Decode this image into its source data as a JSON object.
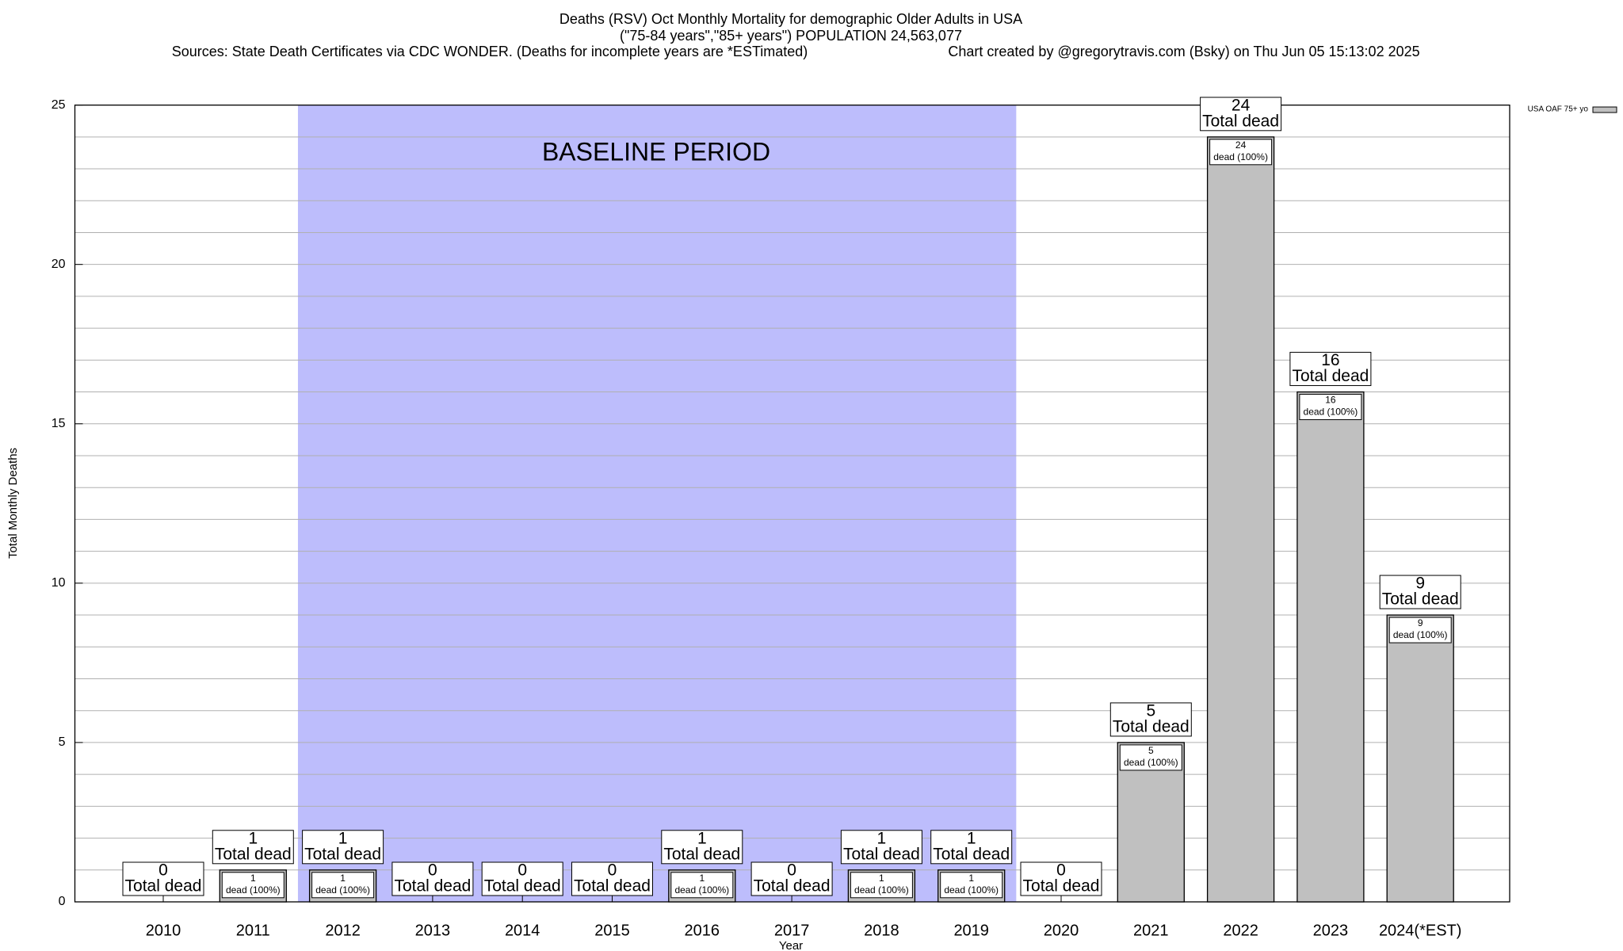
{
  "chart_data": {
    "type": "bar",
    "title": "Deaths (RSV) Oct Monthly Mortality for demographic Older Adults in USA",
    "subtitle": "(\"75-84 years\",\"85+ years\") POPULATION 24,563,077",
    "sources": "Sources: State Death Certificates via CDC WONDER. (Deaths for incomplete years are *ESTimated)",
    "credit": "Chart created by @gregorytravis.com (Bsky) on Thu Jun 05 15:13:02 2025",
    "x_label": "Year",
    "y_label": "Total Monthly Deaths",
    "annotation": "BASELINE PERIOD",
    "total_label": "Total dead",
    "share_label": "dead (100%)",
    "categories": [
      "2010",
      "2011",
      "2012",
      "2013",
      "2014",
      "2015",
      "2016",
      "2017",
      "2018",
      "2019",
      "2020",
      "2021",
      "2022",
      "2023",
      "2024(*EST)"
    ],
    "series": [
      {
        "name": "USA OAF 75+ yo",
        "color": "#c0c0c0",
        "values": [
          0,
          1,
          1,
          0,
          0,
          0,
          1,
          0,
          1,
          1,
          0,
          5,
          24,
          16,
          9
        ]
      }
    ],
    "ylim": [
      0,
      25
    ],
    "yticks": [
      0,
      5,
      10,
      15,
      20,
      25
    ],
    "minor_yticks": [
      1,
      2,
      3,
      4,
      6,
      7,
      8,
      9,
      11,
      12,
      13,
      14,
      16,
      17,
      18,
      19,
      21,
      22,
      23,
      24
    ],
    "grid": true,
    "legend": "top-right"
  }
}
